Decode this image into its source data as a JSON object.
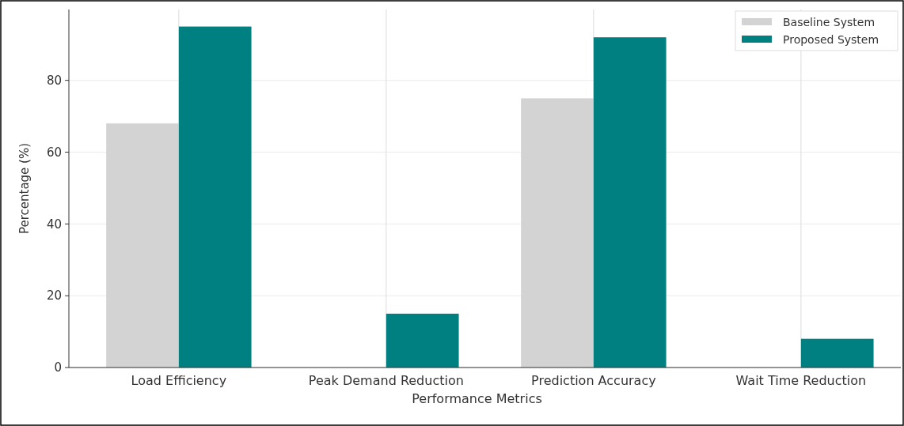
{
  "chart_data": {
    "type": "bar",
    "xlabel": "Performance Metrics",
    "ylabel": "Percentage (%)",
    "categories": [
      "Load Efficiency",
      "Peak Demand Reduction",
      "Prediction Accuracy",
      "Wait Time Reduction"
    ],
    "series": [
      {
        "name": "Baseline System",
        "color": "#d3d3d3",
        "values": [
          68,
          0,
          75,
          0
        ]
      },
      {
        "name": "Proposed System",
        "color": "#008080",
        "values": [
          95,
          15,
          92,
          8
        ]
      }
    ],
    "ylim": [
      0,
      99.75
    ],
    "yticks": [
      0,
      20,
      40,
      60,
      80
    ],
    "grid": true,
    "legend": "top right"
  }
}
